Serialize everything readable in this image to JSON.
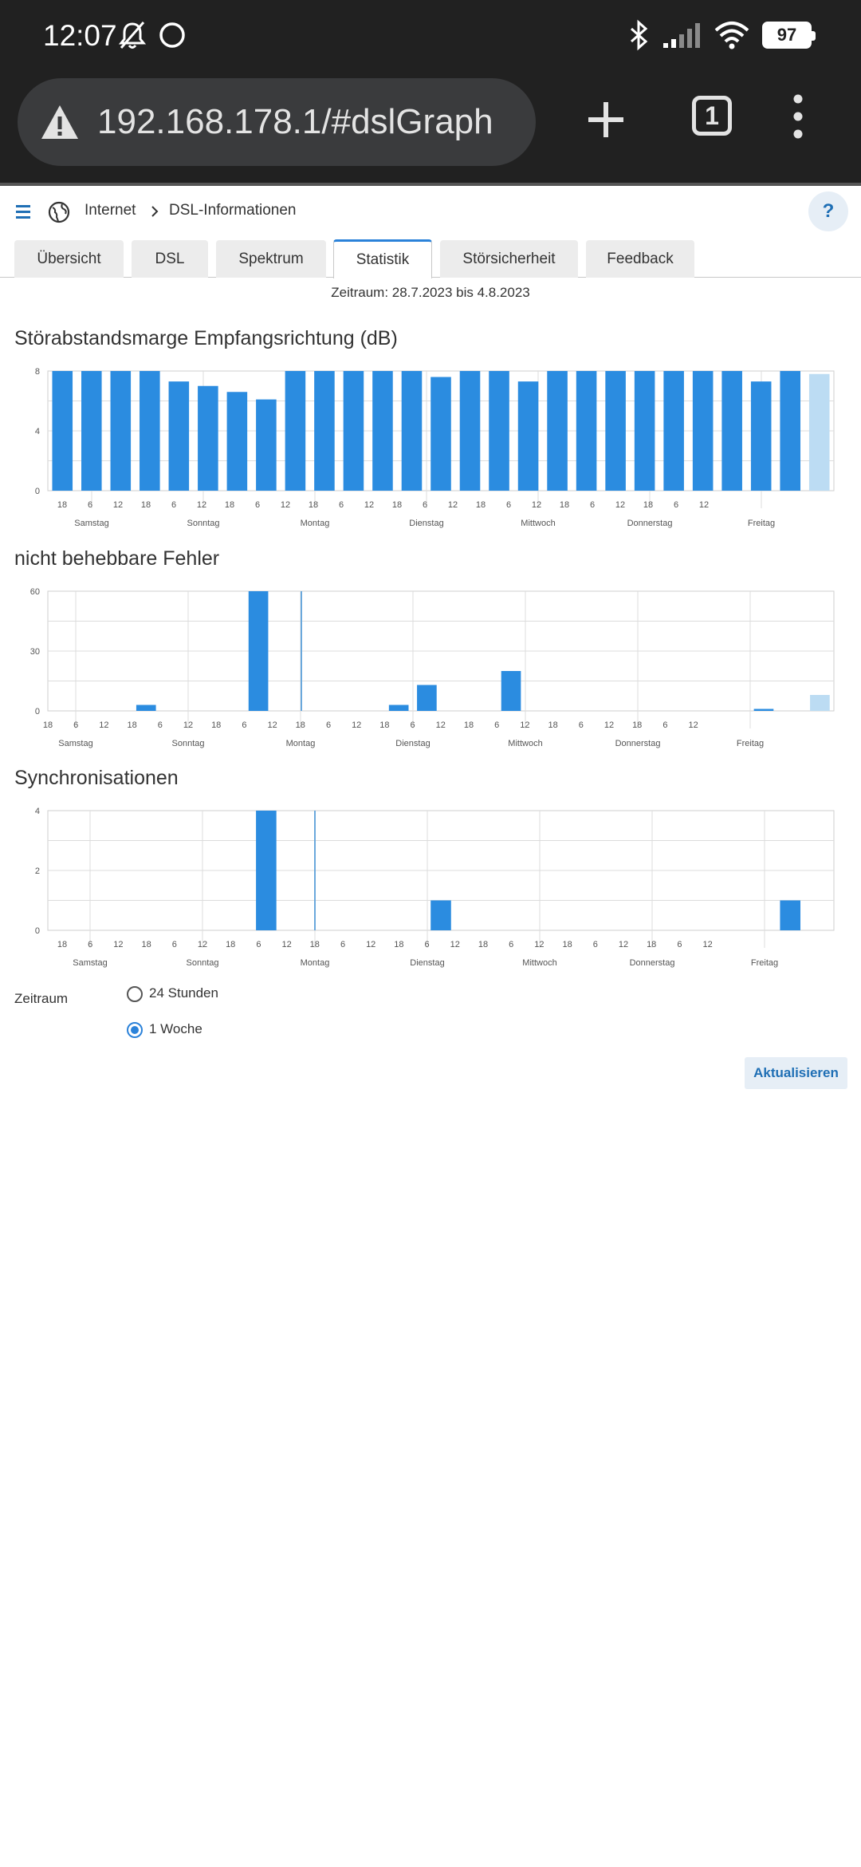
{
  "status_bar": {
    "time": "12:07",
    "battery": "97",
    "icons": [
      "bell-off-icon",
      "circle-icon",
      "bluetooth-icon",
      "signal-icon",
      "wifi-icon",
      "battery-icon"
    ]
  },
  "browser": {
    "url": "192.168.178.1/#dslGraph",
    "tab_count": "1"
  },
  "breadcrumb": {
    "items": [
      "Internet",
      "DSL-Informationen"
    ]
  },
  "help_label": "?",
  "tabs": [
    {
      "label": "Übersicht",
      "active": false
    },
    {
      "label": "DSL",
      "active": false
    },
    {
      "label": "Spektrum",
      "active": false
    },
    {
      "label": "Statistik",
      "active": true
    },
    {
      "label": "Störsicherheit",
      "active": false
    },
    {
      "label": "Feedback",
      "active": false
    }
  ],
  "period_text": "Zeitraum: 28.7.2023 bis 4.8.2023",
  "colors": {
    "bar": "#2b8ce0",
    "bar_current": "#bcdcf3",
    "accent": "#2b82d9",
    "grid": "#dcdcdc"
  },
  "chart_data": [
    {
      "type": "bar",
      "title": "Störabstandsmarge Empfangsrichtung (dB)",
      "ylim": [
        0,
        8
      ],
      "y_ticks": [
        "0",
        "4",
        "8"
      ],
      "hour_ticks": [
        "18",
        "6",
        "12",
        "18",
        "6",
        "12",
        "18",
        "6",
        "12",
        "18",
        "6",
        "12",
        "18",
        "6",
        "12",
        "18",
        "6",
        "12",
        "18",
        "6",
        "12",
        "18",
        "6",
        "12"
      ],
      "days": [
        "Samstag",
        "Sonntag",
        "Montag",
        "Dienstag",
        "Mittwoch",
        "Donnerstag",
        "Freitag"
      ],
      "values": [
        8,
        8,
        8,
        8,
        7.3,
        7,
        6.6,
        6.1,
        8,
        8,
        8,
        8,
        8,
        7.6,
        8,
        8,
        7.3,
        8,
        8,
        8,
        8,
        8,
        8,
        8,
        7.3,
        8,
        7.8
      ],
      "current_index": 26
    },
    {
      "type": "bar",
      "title": "nicht behebbare Fehler",
      "ylim": [
        0,
        60
      ],
      "y_ticks": [
        "0",
        "30",
        "60"
      ],
      "hour_ticks": [
        "18",
        "6",
        "12",
        "18",
        "6",
        "12",
        "18",
        "6",
        "12",
        "18",
        "6",
        "12",
        "18",
        "6",
        "12",
        "18",
        "6",
        "12",
        "18",
        "6",
        "12",
        "18",
        "6",
        "12"
      ],
      "days": [
        "Samstag",
        "Sonntag",
        "Montag",
        "Dienstag",
        "Mittwoch",
        "Donnerstag",
        "Freitag"
      ],
      "values": [
        0,
        0,
        0,
        3,
        0,
        0,
        0,
        60,
        0,
        0,
        0,
        0,
        3,
        13,
        0,
        0,
        20,
        0,
        0,
        0,
        0,
        0,
        0,
        0,
        0,
        1,
        0,
        8
      ],
      "current_index": 27
    },
    {
      "type": "bar",
      "title": "Synchronisationen",
      "ylim": [
        0,
        4
      ],
      "y_ticks": [
        "0",
        "2",
        "4"
      ],
      "hour_ticks": [
        "18",
        "6",
        "12",
        "18",
        "6",
        "12",
        "18",
        "6",
        "12",
        "18",
        "6",
        "12",
        "18",
        "6",
        "12",
        "18",
        "6",
        "12",
        "18",
        "6",
        "12",
        "18",
        "6",
        "12"
      ],
      "days": [
        "Samstag",
        "Sonntag",
        "Montag",
        "Dienstag",
        "Mittwoch",
        "Donnerstag",
        "Freitag"
      ],
      "values": [
        0,
        0,
        0,
        0,
        0,
        0,
        0,
        4,
        0,
        0,
        0,
        0,
        0,
        1,
        0,
        0,
        0,
        0,
        0,
        0,
        0,
        0,
        0,
        0,
        0,
        1,
        0
      ],
      "current_index": -1
    }
  ],
  "form": {
    "label": "Zeitraum",
    "options": [
      {
        "label": "24 Stunden",
        "checked": false
      },
      {
        "label": "1 Woche",
        "checked": true
      }
    ],
    "submit_label": "Aktualisieren"
  }
}
